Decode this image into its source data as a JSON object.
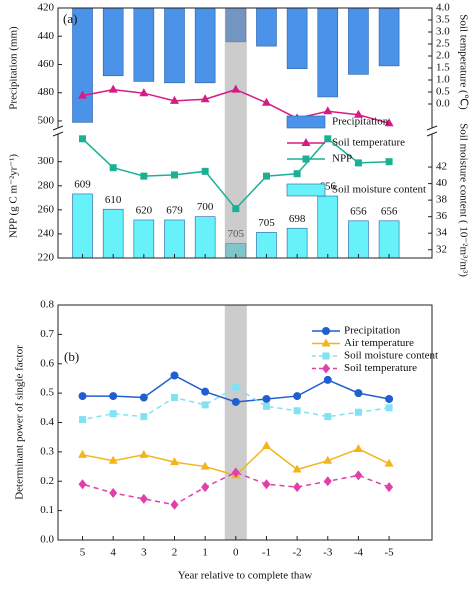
{
  "chart_data": [
    {
      "type": "combo",
      "label": "(a)",
      "x": [
        -5,
        -4,
        -3,
        -2,
        -1,
        0,
        1,
        2,
        3,
        4,
        5
      ],
      "xlim": [
        -6.4,
        5.8
      ],
      "highlight": 0,
      "top": {
        "ylabel": "Precipitation (mm)",
        "ylim": [
          420,
          505
        ],
        "inverted": true,
        "yticks": [
          420,
          440,
          460,
          480,
          500
        ],
        "y2label": "Soil temperature (℃)",
        "y2lim": [
          -1,
          4
        ],
        "y2ticks": [
          {
            "value": 0,
            "label": "0.0"
          },
          0.5,
          {
            "value": 1,
            "label": "1.0"
          },
          1.5,
          {
            "value": 2,
            "label": "2.0"
          },
          2.5,
          {
            "value": 3,
            "label": "3.0"
          },
          3.5,
          {
            "value": 4,
            "label": "4.0"
          }
        ]
      },
      "bottom": {
        "ylabel": "NPP (g C m⁻²yr⁻¹)",
        "ylim": [
          220,
          323
        ],
        "yticks": [
          220,
          240,
          260,
          280,
          300
        ],
        "y2label": "Soil moisture content ( 10⁻²m³/m³)",
        "y2lim": [
          31,
          46
        ],
        "y2ticks": [
          32,
          34,
          36,
          38,
          40,
          42
        ]
      },
      "series": [
        {
          "name": "Precipitation",
          "type": "bar",
          "panel": "top",
          "axis": "y",
          "color": "#4a93e8",
          "values": [
            461,
            467,
            483,
            463,
            447,
            444,
            473,
            473,
            472,
            468,
            501
          ]
        },
        {
          "name": "Soil temperature",
          "type": "line",
          "panel": "top",
          "axis": "y2",
          "color": "#d81b84",
          "marker": "triangle",
          "values": [
            -0.8,
            -0.45,
            -0.3,
            -0.6,
            0.05,
            0.6,
            0.2,
            0.13,
            0.45,
            0.6,
            0.35
          ]
        },
        {
          "name": "NPP",
          "type": "line",
          "panel": "bottom",
          "axis": "y",
          "color": "#1bb094",
          "marker": "square",
          "values": [
            300,
            299,
            319,
            290,
            288,
            261,
            292,
            289,
            288,
            295,
            319
          ]
        },
        {
          "name": "Soil moisture content",
          "type": "bar",
          "panel": "bottom",
          "axis": "y2",
          "color": "#66f2f8",
          "values": [
            35.5,
            35.5,
            38.5,
            34.6,
            34.1,
            32.75,
            36.0,
            35.6,
            35.6,
            36.9,
            38.75
          ],
          "annotations": [
            "656",
            "656",
            "656",
            "698",
            "705",
            "705",
            "700",
            "679",
            "620",
            "610",
            "609"
          ]
        }
      ]
    },
    {
      "type": "line",
      "label": "(b)",
      "x": [
        -5,
        -4,
        -3,
        -2,
        -1,
        0,
        1,
        2,
        3,
        4,
        5
      ],
      "xlim": [
        -6.4,
        5.8
      ],
      "xticks": [
        -5,
        -4,
        -3,
        -2,
        -1,
        0,
        1,
        2,
        3,
        4,
        5
      ],
      "highlight": 0,
      "xlabel": "Year relative to complete thaw",
      "ylabel": "Determinant power of single factor",
      "ylim": [
        0,
        0.8
      ],
      "yticks": [
        {
          "value": 0,
          "label": "0.0"
        },
        0.1,
        0.2,
        0.3,
        0.4,
        0.5,
        0.6,
        0.7,
        0.8
      ],
      "series": [
        {
          "name": "Precipitation",
          "color": "#1f5fd0",
          "marker": "circle",
          "dashed": false,
          "values": [
            0.48,
            0.5,
            0.545,
            0.49,
            0.48,
            0.47,
            0.505,
            0.56,
            0.485,
            0.49,
            0.49
          ]
        },
        {
          "name": "Air temperature",
          "color": "#f2b61c",
          "marker": "triangle",
          "dashed": false,
          "values": [
            0.26,
            0.31,
            0.27,
            0.24,
            0.32,
            0.22,
            0.25,
            0.265,
            0.29,
            0.27,
            0.29
          ]
        },
        {
          "name": "Soil moisture content",
          "color": "#80e2f2",
          "marker": "square",
          "dashed": true,
          "values": [
            0.45,
            0.435,
            0.42,
            0.44,
            0.455,
            0.52,
            0.46,
            0.485,
            0.42,
            0.43,
            0.41
          ]
        },
        {
          "name": "Soil temperature",
          "color": "#e040a8",
          "marker": "diamond",
          "dashed": true,
          "values": [
            0.18,
            0.22,
            0.2,
            0.18,
            0.19,
            0.23,
            0.18,
            0.12,
            0.14,
            0.16,
            0.19
          ]
        }
      ]
    }
  ]
}
